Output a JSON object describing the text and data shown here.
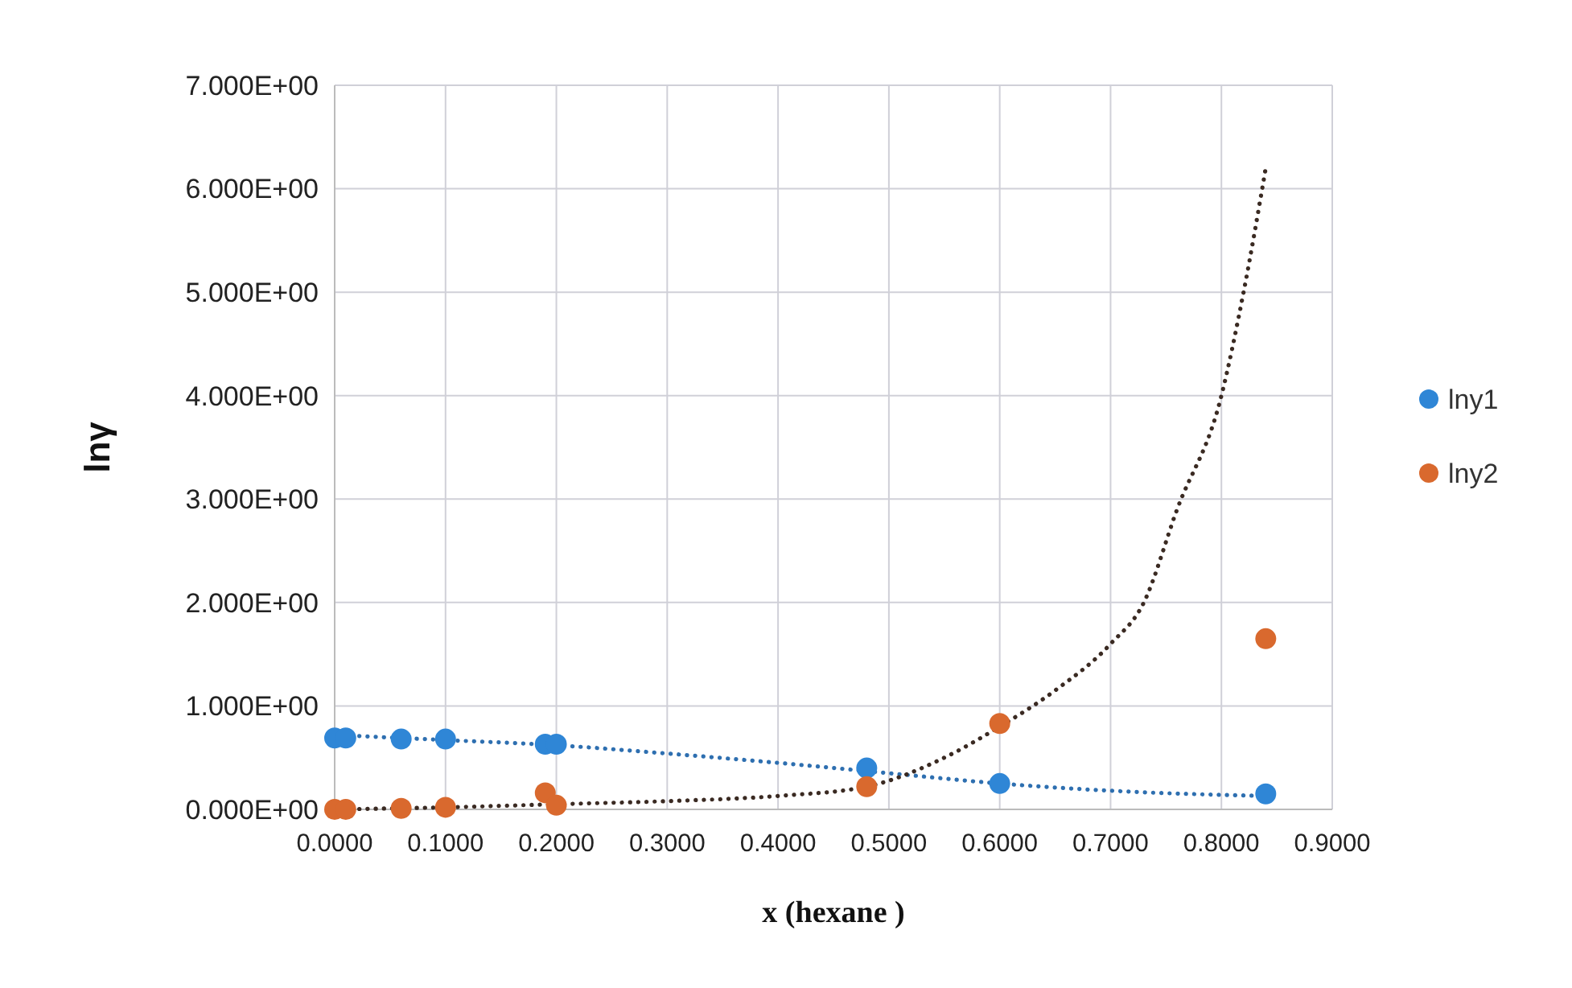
{
  "chart_data": {
    "type": "scatter",
    "xlabel": "x (hexane )",
    "ylabel": "lnγ",
    "xlim": [
      0,
      0.9
    ],
    "xticks": [
      {
        "value": 0,
        "label": "0.0000"
      },
      {
        "value": 0.1,
        "label": "0.1000"
      },
      {
        "value": 0.2,
        "label": "0.2000"
      },
      {
        "value": 0.3,
        "label": "0.3000"
      },
      {
        "value": 0.4,
        "label": "0.4000"
      },
      {
        "value": 0.5,
        "label": "0.5000"
      },
      {
        "value": 0.6,
        "label": "0.6000"
      },
      {
        "value": 0.7,
        "label": "0.7000"
      },
      {
        "value": 0.8,
        "label": "0.8000"
      },
      {
        "value": 0.9,
        "label": "0.9000"
      }
    ],
    "ylim": [
      0,
      7
    ],
    "yticks": [
      {
        "value": 0,
        "label": "0.000E+00"
      },
      {
        "value": 1,
        "label": "1.000E+00"
      },
      {
        "value": 2,
        "label": "2.000E+00"
      },
      {
        "value": 3,
        "label": "3.000E+00"
      },
      {
        "value": 4,
        "label": "4.000E+00"
      },
      {
        "value": 5,
        "label": "5.000E+00"
      },
      {
        "value": 6,
        "label": "6.000E+00"
      },
      {
        "value": 7,
        "label": "7.000E+00"
      }
    ],
    "grid": true,
    "legend": "right",
    "marker": "circle",
    "series": [
      {
        "type": "line",
        "color": "#2e6fb0",
        "line_style": "dotted",
        "marker": "none",
        "x": [
          0,
          0.1,
          0.2,
          0.3,
          0.4,
          0.5,
          0.6,
          0.7,
          0.84
        ],
        "values": [
          0.72,
          0.67,
          0.62,
          0.54,
          0.45,
          0.35,
          0.25,
          0.18,
          0.13
        ]
      },
      {
        "type": "line",
        "color": "#3a2a22",
        "line_style": "dotted",
        "marker": "none",
        "x": [
          0,
          0.1,
          0.2,
          0.3,
          0.4,
          0.48,
          0.55,
          0.6,
          0.65,
          0.7,
          0.73,
          0.76,
          0.8,
          0.82,
          0.84
        ],
        "values": [
          0,
          0.02,
          0.05,
          0.08,
          0.13,
          0.22,
          0.5,
          0.8,
          1.15,
          1.6,
          2.0,
          2.9,
          4.0,
          5.0,
          6.2
        ]
      },
      {
        "name": "lny1",
        "color": "#2f86d6",
        "x": [
          0,
          0.01,
          0.06,
          0.1,
          0.19,
          0.2,
          0.48,
          0.6,
          0.84
        ],
        "values": [
          0.69,
          0.69,
          0.68,
          0.68,
          0.63,
          0.63,
          0.4,
          0.25,
          0.15
        ]
      },
      {
        "name": "lny2",
        "color": "#d9692e",
        "x": [
          0,
          0.01,
          0.06,
          0.1,
          0.19,
          0.2,
          0.48,
          0.6,
          0.84
        ],
        "values": [
          0,
          0,
          0.01,
          0.02,
          0.16,
          0.04,
          0.22,
          0.83,
          1.65
        ]
      }
    ]
  }
}
